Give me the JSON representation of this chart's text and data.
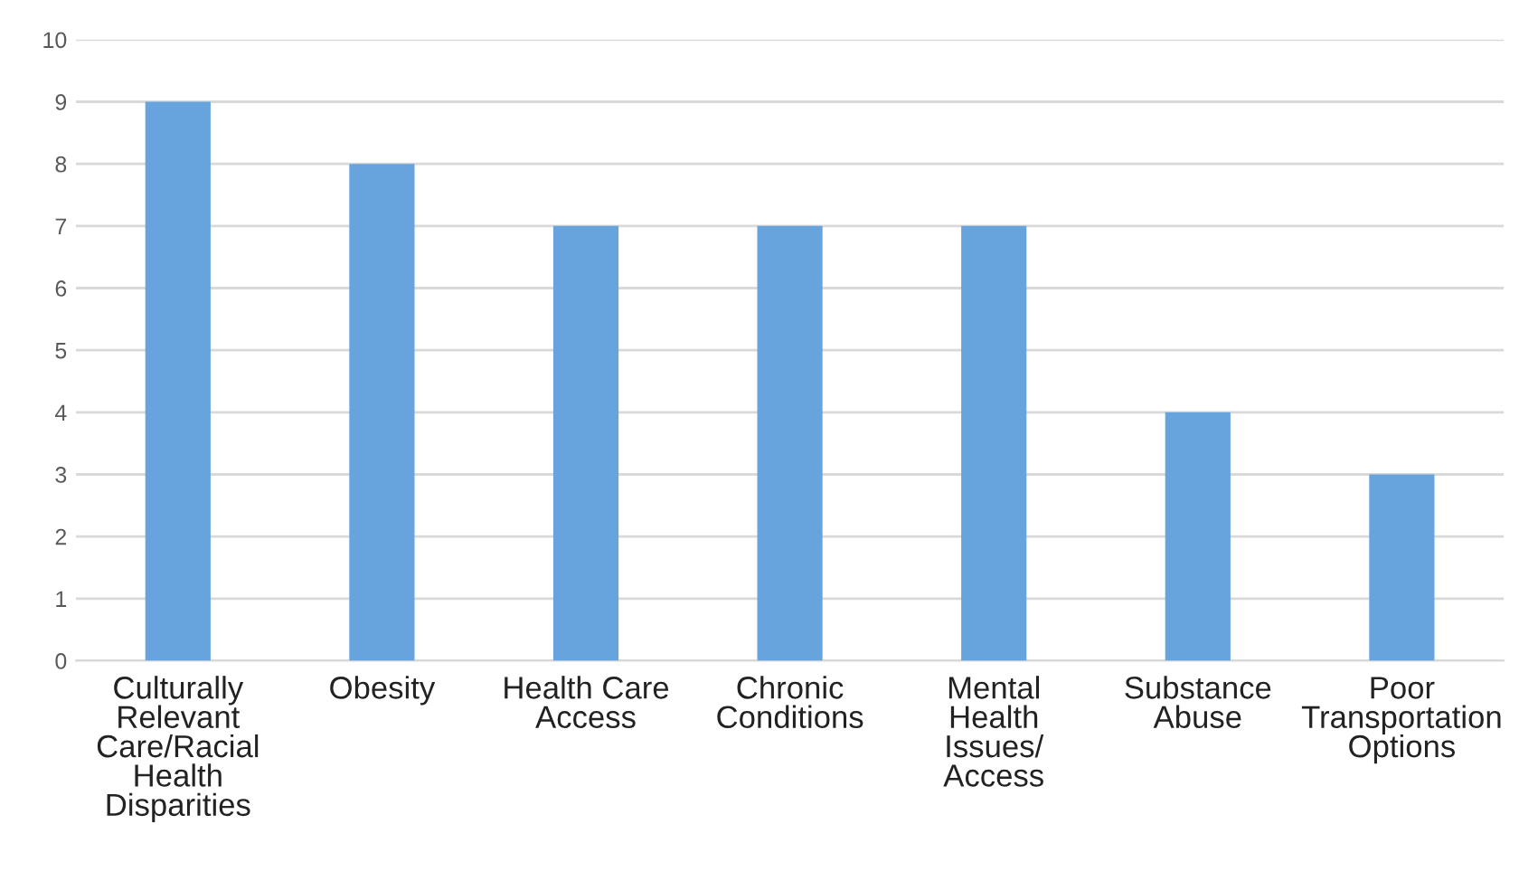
{
  "chart_data": {
    "type": "bar",
    "categories": [
      "Culturally\nRelevant\nCare/Racial\nHealth\nDisparities",
      "Obesity",
      "Health Care\nAccess",
      "Chronic\nConditions",
      "Mental\nHealth\nIssues/\nAccess",
      "Substance\nAbuse",
      "Poor\nTransportation\nOptions"
    ],
    "values": [
      9,
      8,
      7,
      7,
      7,
      4,
      3
    ],
    "color": "#67a3dc",
    "ylim": [
      0,
      10
    ],
    "yticks": [
      0,
      1,
      2,
      3,
      4,
      5,
      6,
      7,
      8,
      9,
      10
    ],
    "grid": "y"
  }
}
